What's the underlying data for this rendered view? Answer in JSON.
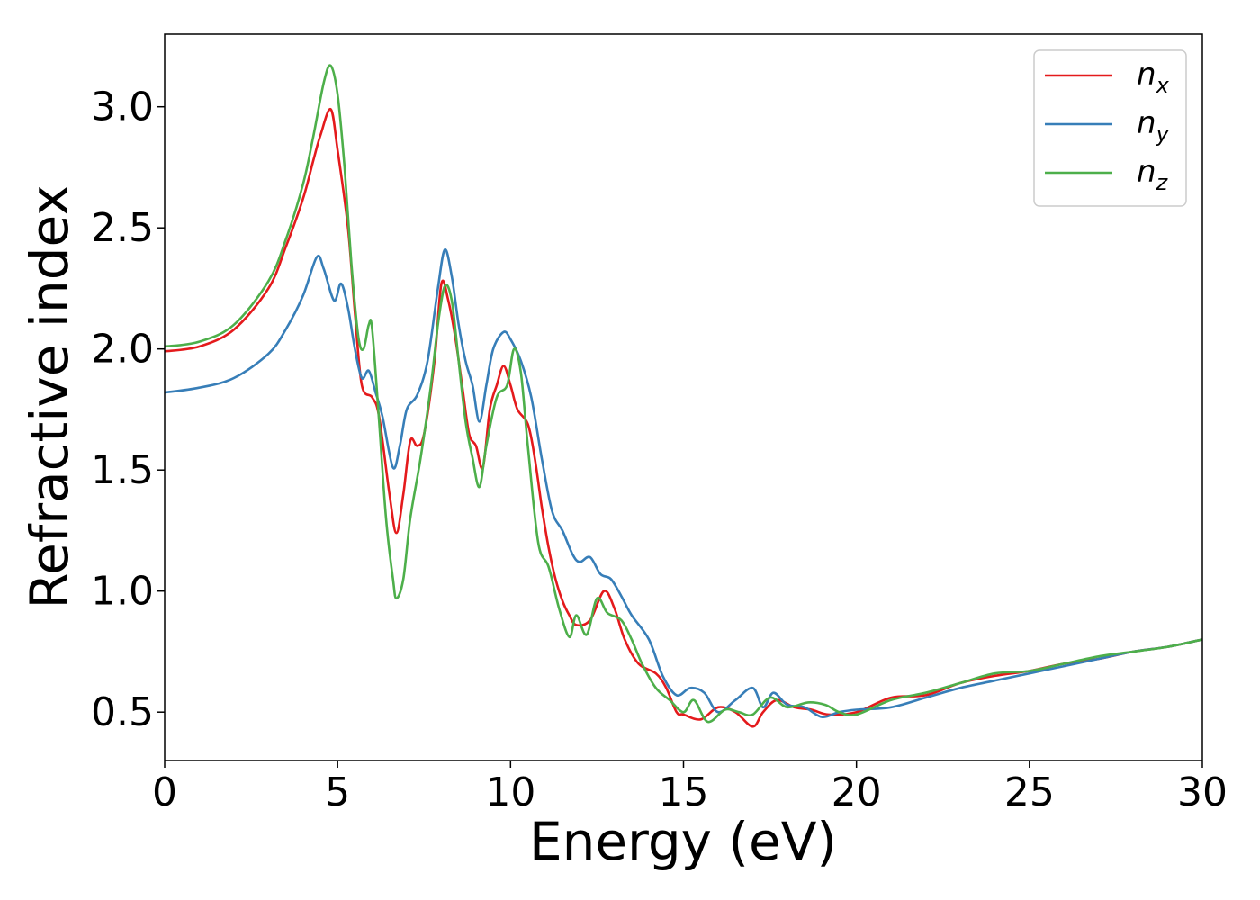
{
  "chart_data": {
    "type": "line",
    "title": "",
    "xlabel": "Energy (eV)",
    "ylabel": "Refractive index",
    "xlim": [
      0,
      30
    ],
    "ylim": [
      0.3,
      3.3
    ],
    "xticks": [
      0,
      5,
      10,
      15,
      20,
      25,
      30
    ],
    "xtick_labels": [
      "0",
      "5",
      "10",
      "15",
      "20",
      "25",
      "30"
    ],
    "yticks": [
      0.5,
      1.0,
      1.5,
      2.0,
      2.5,
      3.0
    ],
    "ytick_labels": [
      "0.5",
      "1.0",
      "1.5",
      "2.0",
      "2.5",
      "3.0"
    ],
    "grid": false,
    "legend_position": "top-right",
    "series": [
      {
        "name": "n_x",
        "base": "n",
        "sub": "x",
        "color": "#e41a1c",
        "points": [
          [
            0,
            1.99
          ],
          [
            1,
            2.01
          ],
          [
            2,
            2.08
          ],
          [
            3,
            2.25
          ],
          [
            3.5,
            2.42
          ],
          [
            4,
            2.62
          ],
          [
            4.3,
            2.78
          ],
          [
            4.5,
            2.88
          ],
          [
            4.8,
            2.99
          ],
          [
            5.0,
            2.82
          ],
          [
            5.3,
            2.5
          ],
          [
            5.5,
            2.15
          ],
          [
            5.7,
            1.85
          ],
          [
            6.0,
            1.8
          ],
          [
            6.2,
            1.72
          ],
          [
            6.5,
            1.4
          ],
          [
            6.7,
            1.24
          ],
          [
            6.9,
            1.4
          ],
          [
            7.1,
            1.62
          ],
          [
            7.3,
            1.6
          ],
          [
            7.5,
            1.65
          ],
          [
            7.8,
            1.95
          ],
          [
            8.0,
            2.27
          ],
          [
            8.2,
            2.2
          ],
          [
            8.4,
            2.05
          ],
          [
            8.6,
            1.85
          ],
          [
            8.8,
            1.65
          ],
          [
            9.0,
            1.6
          ],
          [
            9.2,
            1.51
          ],
          [
            9.4,
            1.75
          ],
          [
            9.6,
            1.85
          ],
          [
            9.8,
            1.93
          ],
          [
            10.0,
            1.85
          ],
          [
            10.2,
            1.75
          ],
          [
            10.5,
            1.69
          ],
          [
            10.7,
            1.55
          ],
          [
            10.9,
            1.35
          ],
          [
            11.1,
            1.18
          ],
          [
            11.3,
            1.05
          ],
          [
            11.5,
            0.96
          ],
          [
            11.7,
            0.9
          ],
          [
            11.9,
            0.86
          ],
          [
            12.3,
            0.88
          ],
          [
            12.7,
            1.0
          ],
          [
            13.0,
            0.93
          ],
          [
            13.3,
            0.8
          ],
          [
            13.7,
            0.7
          ],
          [
            14.2,
            0.66
          ],
          [
            14.5,
            0.6
          ],
          [
            14.8,
            0.5
          ],
          [
            15.0,
            0.49
          ],
          [
            15.5,
            0.47
          ],
          [
            16.0,
            0.52
          ],
          [
            16.5,
            0.5
          ],
          [
            17.0,
            0.44
          ],
          [
            17.3,
            0.5
          ],
          [
            17.7,
            0.55
          ],
          [
            18.2,
            0.52
          ],
          [
            18.7,
            0.51
          ],
          [
            19.2,
            0.49
          ],
          [
            20.0,
            0.5
          ],
          [
            21.0,
            0.56
          ],
          [
            22.0,
            0.57
          ],
          [
            23.0,
            0.62
          ],
          [
            24.0,
            0.65
          ],
          [
            25.0,
            0.67
          ],
          [
            26.0,
            0.7
          ],
          [
            27.0,
            0.72
          ],
          [
            28.0,
            0.75
          ],
          [
            29.0,
            0.77
          ],
          [
            30.0,
            0.8
          ]
        ]
      },
      {
        "name": "n_y",
        "base": "n",
        "sub": "y",
        "color": "#377eb8",
        "points": [
          [
            0,
            1.82
          ],
          [
            1,
            1.84
          ],
          [
            2,
            1.88
          ],
          [
            3,
            1.98
          ],
          [
            3.5,
            2.08
          ],
          [
            4,
            2.22
          ],
          [
            4.4,
            2.38
          ],
          [
            4.6,
            2.33
          ],
          [
            4.9,
            2.2
          ],
          [
            5.1,
            2.27
          ],
          [
            5.3,
            2.17
          ],
          [
            5.5,
            2.0
          ],
          [
            5.7,
            1.88
          ],
          [
            5.9,
            1.91
          ],
          [
            6.1,
            1.82
          ],
          [
            6.3,
            1.72
          ],
          [
            6.6,
            1.51
          ],
          [
            6.8,
            1.6
          ],
          [
            7.0,
            1.75
          ],
          [
            7.3,
            1.81
          ],
          [
            7.6,
            1.95
          ],
          [
            7.9,
            2.25
          ],
          [
            8.1,
            2.41
          ],
          [
            8.3,
            2.3
          ],
          [
            8.5,
            2.1
          ],
          [
            8.7,
            1.95
          ],
          [
            8.9,
            1.85
          ],
          [
            9.1,
            1.7
          ],
          [
            9.3,
            1.85
          ],
          [
            9.5,
            2.0
          ],
          [
            9.8,
            2.07
          ],
          [
            10.0,
            2.04
          ],
          [
            10.3,
            1.95
          ],
          [
            10.6,
            1.8
          ],
          [
            10.9,
            1.55
          ],
          [
            11.2,
            1.33
          ],
          [
            11.5,
            1.25
          ],
          [
            11.8,
            1.15
          ],
          [
            12.0,
            1.12
          ],
          [
            12.3,
            1.14
          ],
          [
            12.6,
            1.07
          ],
          [
            12.9,
            1.05
          ],
          [
            13.2,
            0.98
          ],
          [
            13.5,
            0.9
          ],
          [
            14.0,
            0.8
          ],
          [
            14.4,
            0.65
          ],
          [
            14.8,
            0.57
          ],
          [
            15.2,
            0.6
          ],
          [
            15.6,
            0.58
          ],
          [
            16.0,
            0.5
          ],
          [
            16.5,
            0.55
          ],
          [
            17.0,
            0.6
          ],
          [
            17.3,
            0.52
          ],
          [
            17.6,
            0.58
          ],
          [
            18.0,
            0.53
          ],
          [
            18.5,
            0.52
          ],
          [
            19.0,
            0.48
          ],
          [
            19.5,
            0.5
          ],
          [
            20.0,
            0.51
          ],
          [
            21.0,
            0.52
          ],
          [
            22.0,
            0.56
          ],
          [
            23.0,
            0.6
          ],
          [
            24.0,
            0.63
          ],
          [
            25.0,
            0.66
          ],
          [
            26.0,
            0.69
          ],
          [
            27.0,
            0.72
          ],
          [
            28.0,
            0.75
          ],
          [
            29.0,
            0.77
          ],
          [
            30.0,
            0.8
          ]
        ]
      },
      {
        "name": "n_z",
        "base": "n",
        "sub": "z",
        "color": "#4daf4a",
        "points": [
          [
            0,
            2.01
          ],
          [
            1,
            2.03
          ],
          [
            2,
            2.1
          ],
          [
            3,
            2.28
          ],
          [
            3.5,
            2.45
          ],
          [
            4,
            2.68
          ],
          [
            4.3,
            2.88
          ],
          [
            4.6,
            3.1
          ],
          [
            4.8,
            3.17
          ],
          [
            5.0,
            3.05
          ],
          [
            5.2,
            2.75
          ],
          [
            5.4,
            2.35
          ],
          [
            5.6,
            2.05
          ],
          [
            5.75,
            2.0
          ],
          [
            5.9,
            2.1
          ],
          [
            6.0,
            2.08
          ],
          [
            6.2,
            1.7
          ],
          [
            6.4,
            1.3
          ],
          [
            6.6,
            1.05
          ],
          [
            6.7,
            0.97
          ],
          [
            6.9,
            1.05
          ],
          [
            7.1,
            1.3
          ],
          [
            7.4,
            1.55
          ],
          [
            7.7,
            1.85
          ],
          [
            7.9,
            2.1
          ],
          [
            8.1,
            2.26
          ],
          [
            8.3,
            2.2
          ],
          [
            8.5,
            1.95
          ],
          [
            8.7,
            1.7
          ],
          [
            8.9,
            1.55
          ],
          [
            9.1,
            1.43
          ],
          [
            9.3,
            1.6
          ],
          [
            9.6,
            1.8
          ],
          [
            9.9,
            1.85
          ],
          [
            10.1,
            2.0
          ],
          [
            10.3,
            1.9
          ],
          [
            10.5,
            1.6
          ],
          [
            10.8,
            1.2
          ],
          [
            11.1,
            1.1
          ],
          [
            11.4,
            0.93
          ],
          [
            11.7,
            0.81
          ],
          [
            11.9,
            0.9
          ],
          [
            12.2,
            0.82
          ],
          [
            12.5,
            0.97
          ],
          [
            12.8,
            0.91
          ],
          [
            13.2,
            0.88
          ],
          [
            13.5,
            0.8
          ],
          [
            13.8,
            0.7
          ],
          [
            14.2,
            0.6
          ],
          [
            14.6,
            0.55
          ],
          [
            15.0,
            0.5
          ],
          [
            15.3,
            0.55
          ],
          [
            15.7,
            0.46
          ],
          [
            16.2,
            0.51
          ],
          [
            16.6,
            0.5
          ],
          [
            17.0,
            0.49
          ],
          [
            17.5,
            0.56
          ],
          [
            18.0,
            0.52
          ],
          [
            18.6,
            0.54
          ],
          [
            19.1,
            0.53
          ],
          [
            19.5,
            0.5
          ],
          [
            20.0,
            0.49
          ],
          [
            21.0,
            0.55
          ],
          [
            22.0,
            0.58
          ],
          [
            23.0,
            0.62
          ],
          [
            24.0,
            0.66
          ],
          [
            25.0,
            0.67
          ],
          [
            26.0,
            0.7
          ],
          [
            27.0,
            0.73
          ],
          [
            28.0,
            0.75
          ],
          [
            29.0,
            0.77
          ],
          [
            30.0,
            0.8
          ]
        ]
      }
    ]
  }
}
